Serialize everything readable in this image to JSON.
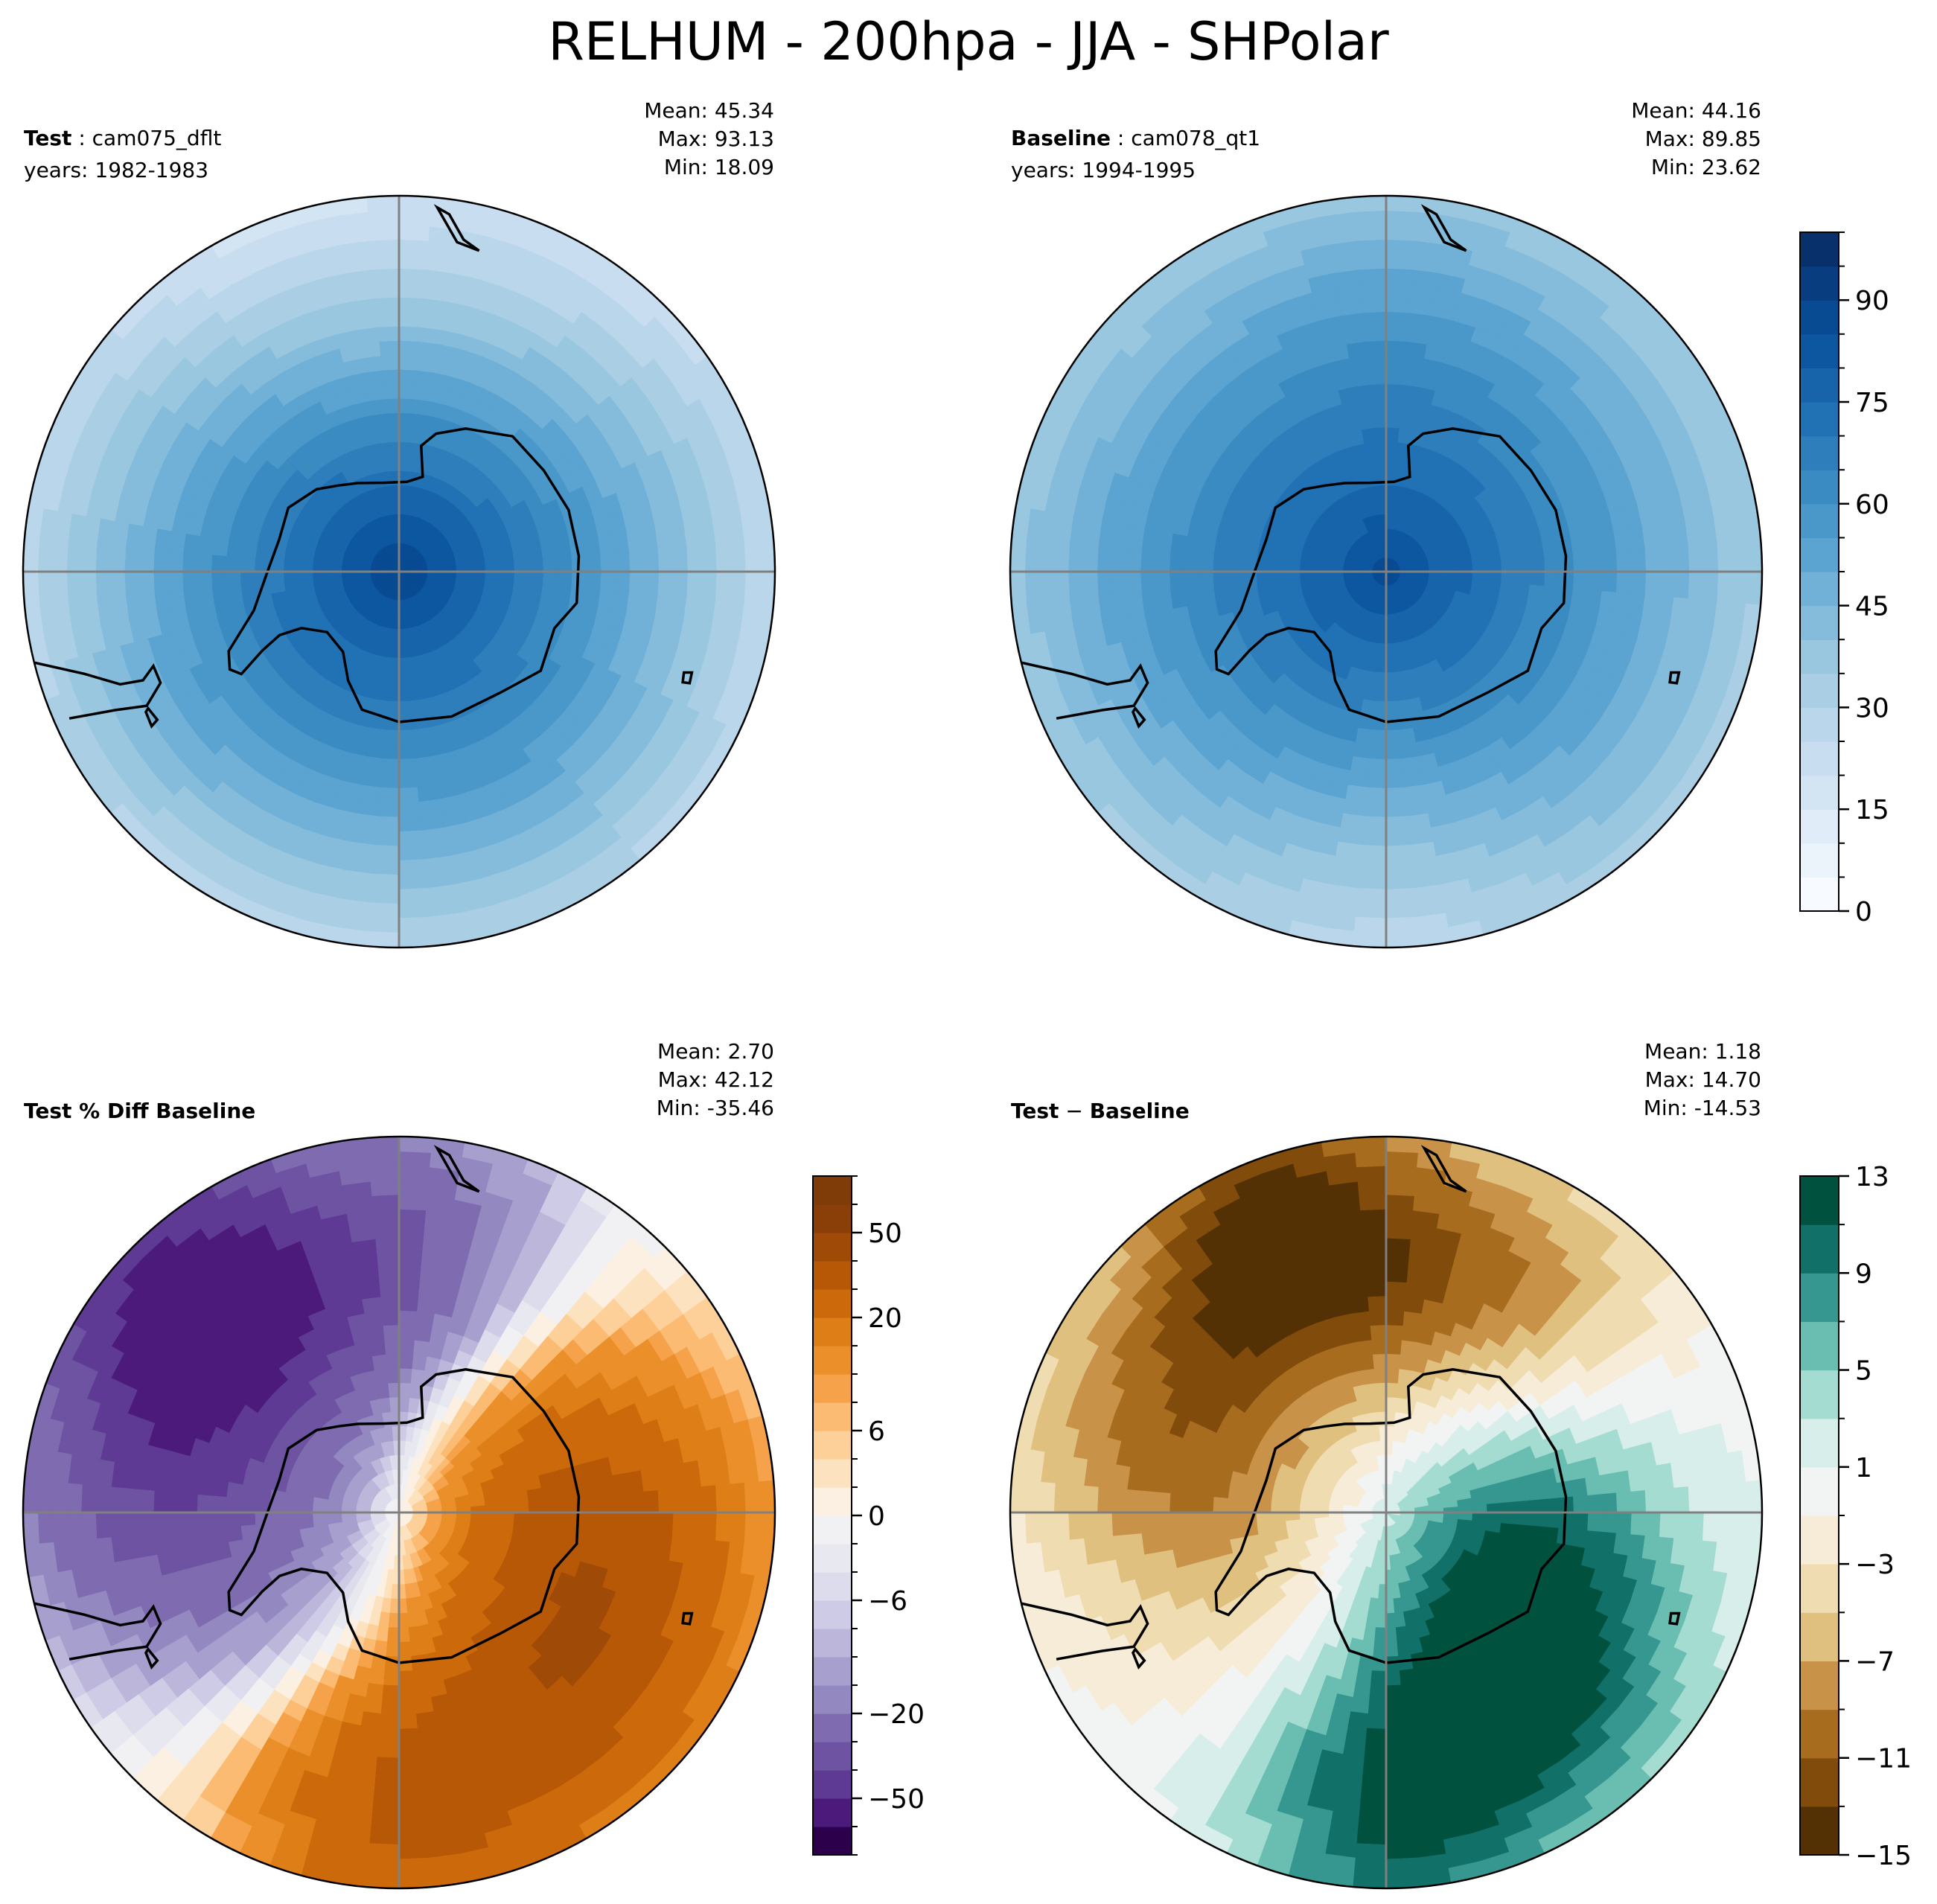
{
  "chart_data": {
    "type": "heatmap",
    "title": "RELHUM - 200hpa - JJA - SHPolar",
    "panels": [
      {
        "id": "test",
        "label_bold": "Test",
        "label_sep": " : ",
        "label_text": "cam075_dflt",
        "subtitle": "years: 1982-1983",
        "stats": [
          "Mean: 45.34",
          "Max: 93.13",
          "Min: 18.09"
        ],
        "field": {
          "pole_value": 90,
          "edge_value": 26,
          "anomalies": [
            {
              "lon": 200,
              "lat": -46,
              "value": -9
            },
            {
              "lon": 150,
              "lat": -50,
              "value": -7
            },
            {
              "lon": 20,
              "lat": -48,
              "value": 5
            },
            {
              "lon": 300,
              "lat": -50,
              "value": 4
            }
          ]
        }
      },
      {
        "id": "baseline",
        "label_bold": "Baseline",
        "label_sep": " : ",
        "label_text": "cam078_qt1",
        "subtitle": "years: 1994-1995",
        "stats": [
          "Mean: 44.16",
          "Max: 89.85",
          "Min: 23.62"
        ],
        "field": {
          "pole_value": 86,
          "edge_value": 34,
          "anomalies": [
            {
              "lon": 0,
              "lat": -48,
              "value": -8
            },
            {
              "lon": 180,
              "lat": -54,
              "value": 6
            },
            {
              "lon": 270,
              "lat": -52,
              "value": 4
            }
          ]
        }
      },
      {
        "id": "pctdiff",
        "label_bold": "Test % Diff Baseline",
        "label_sep": "",
        "label_text": "",
        "subtitle": "",
        "stats": [
          "Mean:  2.70",
          "Max: 42.12",
          "Min: -35.46"
        ],
        "field": {
          "pole_value": 0,
          "edge_value": 0,
          "anomalies": [
            {
              "lon": 0,
              "lat": -50,
              "value": 30
            },
            {
              "lon": 45,
              "lat": -58,
              "value": 28
            },
            {
              "lon": 90,
              "lat": -62,
              "value": 24
            },
            {
              "lon": 135,
              "lat": -72,
              "value": 10
            },
            {
              "lon": 180,
              "lat": -56,
              "value": -28
            },
            {
              "lon": 225,
              "lat": -52,
              "value": -55
            },
            {
              "lon": 270,
              "lat": -56,
              "value": -26
            },
            {
              "lon": 315,
              "lat": -76,
              "value": -10
            }
          ]
        }
      },
      {
        "id": "diff",
        "label_bold": "Test",
        "label_sep": " − ",
        "label_text": "Baseline",
        "subtitle": "",
        "stats": [
          "Mean:  1.18",
          "Max: 14.70",
          "Min: -14.53"
        ],
        "field": {
          "pole_value": 0,
          "edge_value": 0,
          "anomalies": [
            {
              "lon": 0,
              "lat": -50,
              "value": 10
            },
            {
              "lon": 40,
              "lat": -62,
              "value": 11
            },
            {
              "lon": 95,
              "lat": -72,
              "value": 8
            },
            {
              "lon": 150,
              "lat": -58,
              "value": -9
            },
            {
              "lon": 200,
              "lat": -50,
              "value": -14
            },
            {
              "lon": 250,
              "lat": -58,
              "value": -8
            },
            {
              "lon": 300,
              "lat": -70,
              "value": -4
            }
          ]
        }
      }
    ],
    "colorbars": [
      {
        "id": "cb-abs",
        "cmap": "blues",
        "levels": [
          0,
          5,
          10,
          15,
          20,
          25,
          30,
          35,
          40,
          45,
          50,
          55,
          60,
          65,
          70,
          75,
          80,
          85,
          90,
          95,
          100
        ],
        "ticks": [
          0,
          15,
          30,
          45,
          60,
          75,
          90
        ],
        "tick_labels": [
          "0",
          "15",
          "30",
          "45",
          "60",
          "75",
          "90"
        ],
        "major_tick_positions": [
          0,
          15,
          30,
          45,
          60,
          75,
          90
        ]
      },
      {
        "id": "cb-pct",
        "cmap": "puor",
        "levels": [
          -100,
          -75,
          -50,
          -40,
          -30,
          -20,
          -15,
          -10,
          -8,
          -6,
          -4,
          -2,
          0,
          2,
          4,
          6,
          8,
          10,
          15,
          20,
          30,
          40,
          50,
          75,
          100
        ],
        "ticks": [
          -50,
          -20,
          -6,
          0,
          6,
          20,
          50
        ],
        "tick_labels": [
          "−50",
          "−20",
          "−6",
          "0",
          "6",
          "20",
          "50"
        ]
      },
      {
        "id": "cb-diff",
        "cmap": "brbg",
        "levels": [
          -15,
          -13,
          -11,
          -9,
          -7,
          -5,
          -3,
          -1,
          1,
          3,
          5,
          7,
          9,
          11,
          13
        ],
        "ticks": [
          -15,
          -11,
          -7,
          -3,
          1,
          5,
          9,
          13
        ],
        "tick_labels": [
          "−15",
          "−11",
          "−7",
          "−3",
          "1",
          "5",
          "9",
          "13"
        ]
      }
    ],
    "colors": {
      "blues": [
        "#f7fbff",
        "#ebf3fb",
        "#e0ecf8",
        "#d3e4f3",
        "#c9ddf0",
        "#bad6eb",
        "#aacfe5",
        "#99c7e0",
        "#85bcdb",
        "#71b1d7",
        "#5ba3d0",
        "#4a98c9",
        "#3a8bc2",
        "#2e7ebc",
        "#2171b5",
        "#1764ab",
        "#0d57a1",
        "#084b93",
        "#083d7f",
        "#08306b"
      ],
      "puor": [
        "#2d004b",
        "#4b1a7a",
        "#5e3a94",
        "#6d53a2",
        "#7f6bb0",
        "#9488c0",
        "#a79fcd",
        "#bbb6da",
        "#cdcbe5",
        "#dcdcec",
        "#e8e8f1",
        "#f1f1f3",
        "#fbf0e1",
        "#fde2bf",
        "#fdd09a",
        "#fbbb72",
        "#f5a24a",
        "#ea8f29",
        "#dd7e17",
        "#cc6a0b",
        "#b65806",
        "#a04a07",
        "#8a3e08",
        "#7f3b08"
      ],
      "brbg": [
        "#543005",
        "#814c0b",
        "#a86c1f",
        "#c99249",
        "#dfc07f",
        "#efdcb0",
        "#f6ecd8",
        "#f2f4f3",
        "#d7eeea",
        "#a4dcd1",
        "#69bdb1",
        "#35978f",
        "#117169",
        "#01513f"
      ],
      "coast": "#000000",
      "grid": "#808080"
    }
  }
}
